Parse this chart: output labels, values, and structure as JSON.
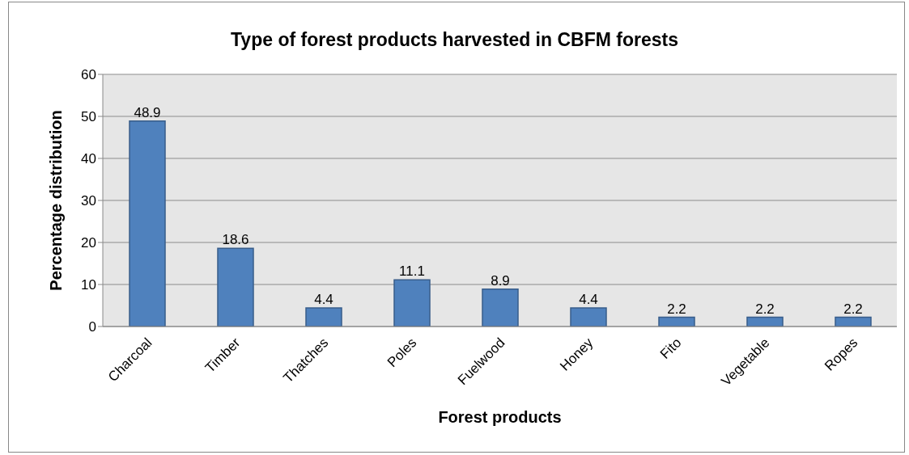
{
  "chart_data": {
    "type": "bar",
    "title": "Type of forest products harvested in CBFM forests",
    "xlabel": "Forest products",
    "ylabel": "Percentage distribution",
    "categories": [
      "Charcoal",
      "Timber",
      "Thatches",
      "Poles",
      "Fuelwood",
      "Honey",
      "Fito",
      "Vegetable",
      "Ropes"
    ],
    "values": [
      48.9,
      18.6,
      4.4,
      11.1,
      8.9,
      4.4,
      2.2,
      2.2,
      2.2
    ],
    "color": "#4f81bd",
    "ylim": [
      0,
      60
    ],
    "yticks": [
      0,
      10,
      20,
      30,
      40,
      50,
      60
    ],
    "grid": "y",
    "data_labels": true
  }
}
